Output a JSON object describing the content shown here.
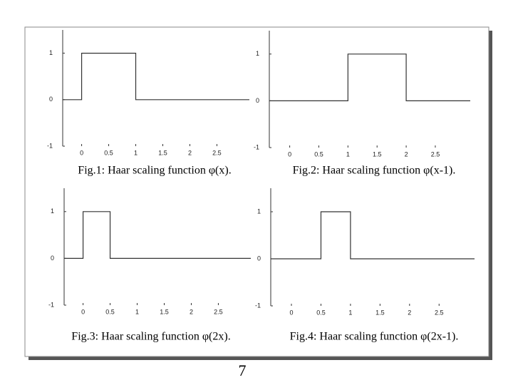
{
  "chart_data": [
    {
      "type": "line",
      "title": "Fig.1: Haar scaling function φ(x).",
      "x": [
        -0.35,
        0,
        0,
        1,
        1,
        3.1
      ],
      "values": [
        0,
        0,
        1,
        1,
        0,
        0
      ],
      "color": "#333333",
      "xlim": [
        -0.35,
        3.1
      ],
      "ylim": [
        -1,
        1.5
      ],
      "xticks": [
        0,
        0.5,
        1,
        1.5,
        2,
        2.5
      ],
      "yticks": [
        -1,
        0,
        1
      ]
    },
    {
      "type": "line",
      "title": "Fig.2: Haar scaling function φ(x-1).",
      "x": [
        -0.35,
        1,
        1,
        2,
        2,
        3.1
      ],
      "values": [
        0,
        0,
        1,
        1,
        0,
        0
      ],
      "color": "#333333",
      "xlim": [
        -0.35,
        3.1
      ],
      "ylim": [
        -1,
        1.5
      ],
      "xticks": [
        0,
        0.5,
        1,
        1.5,
        2,
        2.5
      ],
      "yticks": [
        -1,
        0,
        1
      ]
    },
    {
      "type": "line",
      "title": "Fig.3: Haar scaling function φ(2x).",
      "x": [
        -0.35,
        0,
        0,
        0.5,
        0.5,
        3.1
      ],
      "values": [
        0,
        0,
        1,
        1,
        0,
        0
      ],
      "color": "#333333",
      "xlim": [
        -0.35,
        3.1
      ],
      "ylim": [
        -1,
        1.5
      ],
      "xticks": [
        0,
        0.5,
        1,
        1.5,
        2,
        2.5
      ],
      "yticks": [
        -1,
        0,
        1
      ]
    },
    {
      "type": "line",
      "title": "Fig.4: Haar scaling function φ(2x-1).",
      "x": [
        -0.35,
        0.5,
        0.5,
        1,
        1,
        3.1
      ],
      "values": [
        0,
        0,
        1,
        1,
        0,
        0
      ],
      "color": "#333333",
      "xlim": [
        -0.35,
        3.1
      ],
      "ylim": [
        -1,
        1.5
      ],
      "xticks": [
        0,
        0.5,
        1,
        1.5,
        2,
        2.5
      ],
      "yticks": [
        -1,
        0,
        1
      ]
    }
  ],
  "page_number": 7
}
